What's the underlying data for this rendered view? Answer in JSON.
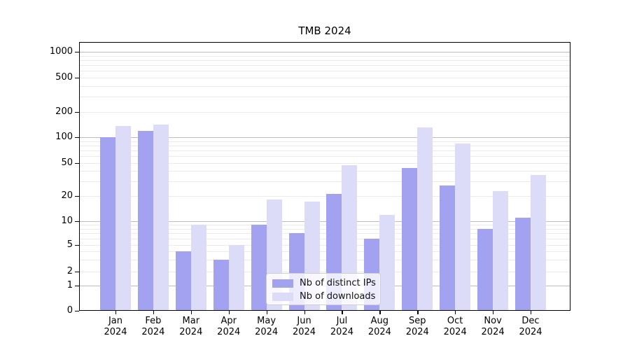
{
  "title": "TMB 2024",
  "chart_data": {
    "type": "bar",
    "months": [
      "Jan",
      "Feb",
      "Mar",
      "Apr",
      "May",
      "Jun",
      "Jul",
      "Aug",
      "Sep",
      "Oct",
      "Nov",
      "Dec"
    ],
    "year": "2024",
    "series": [
      {
        "name": "Nb of distinct IPs",
        "color": "#a2a2f0",
        "values": [
          100,
          118,
          4,
          3,
          9,
          7,
          21,
          6,
          44,
          27,
          8,
          11
        ]
      },
      {
        "name": "Nb of downloads",
        "color": "#dcdcf8",
        "values": [
          135,
          142,
          9,
          5,
          18,
          17,
          47,
          12,
          130,
          85,
          23,
          36
        ]
      }
    ],
    "yscale": "symlog",
    "y_ticks": [
      0,
      1,
      2,
      5,
      10,
      20,
      50,
      100,
      200,
      500,
      1000
    ],
    "ylim": [
      0,
      1300
    ],
    "grid": true,
    "legend_position": "lower center"
  },
  "colors": {
    "major_grid": "#bdbdbd",
    "minor_grid": "#ebebeb",
    "spine": "#000000"
  }
}
